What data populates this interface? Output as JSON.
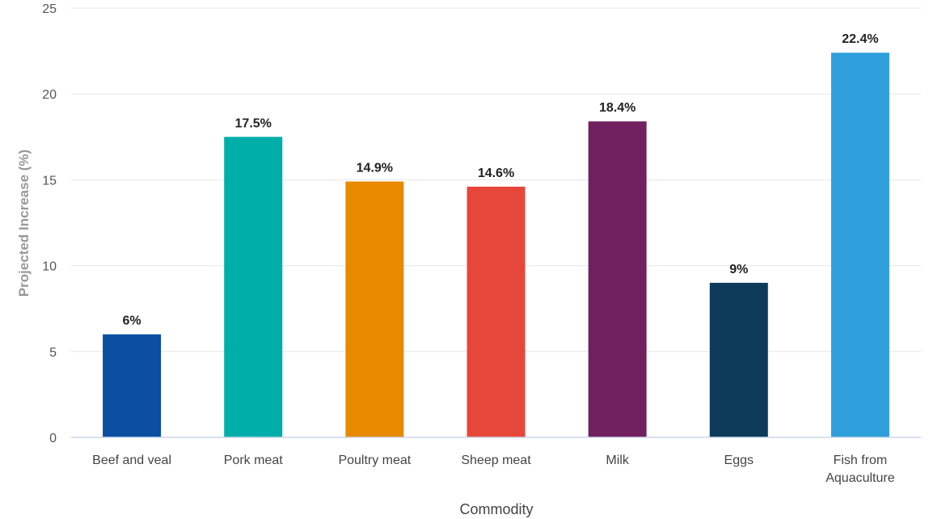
{
  "chart_data": {
    "type": "bar",
    "categories": [
      [
        "Beef and veal"
      ],
      [
        "Pork meat"
      ],
      [
        "Poultry meat"
      ],
      [
        "Sheep meat"
      ],
      [
        "Milk"
      ],
      [
        "Eggs"
      ],
      [
        "Fish from",
        "Aquaculture"
      ]
    ],
    "values": [
      6,
      17.5,
      14.9,
      14.6,
      18.4,
      9,
      22.4
    ],
    "data_labels": [
      "6%",
      "17.5%",
      "14.9%",
      "14.6%",
      "18.4%",
      "9%",
      "22.4%"
    ],
    "colors": [
      "#0b4ea2",
      "#00aea9",
      "#e88a00",
      "#e7473b",
      "#712060",
      "#0e3a5a",
      "#2e9fdb"
    ],
    "xlabel": "Commodity",
    "ylabel": "Projected Increase (%)",
    "ylim": [
      0,
      25
    ],
    "yticks": [
      0,
      5,
      10,
      15,
      20,
      25
    ],
    "grid": true,
    "legend": "none"
  }
}
